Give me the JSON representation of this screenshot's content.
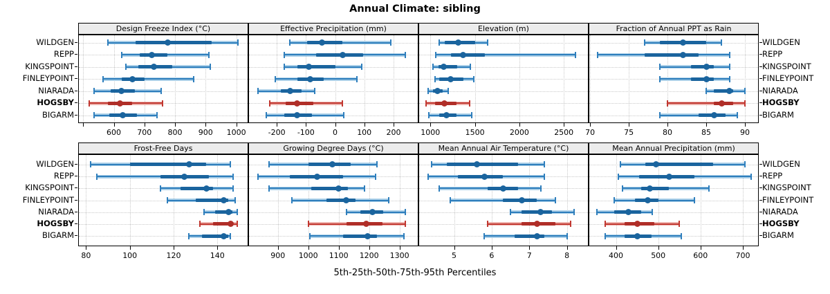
{
  "title": "Annual Climate: sibling",
  "footer": "5th-25th-50th-75th-95th Percentiles",
  "sites": [
    "WILDGEN",
    "REPP",
    "KINGSPOINT",
    "FINLEYPOINT",
    "NIARADA",
    "HOGSBY",
    "BIGARM"
  ],
  "highlight_site": "HOGSBY",
  "colors": {
    "blue_main": "#2e7ebc",
    "blue_dark": "#1a649e",
    "blue_halo": "#aacfe8",
    "red_main": "#c13730",
    "red_dark": "#b02e28",
    "red_halo": "#edb3ad",
    "grid": "#c9c9c9",
    "strip_bg": "#ececec",
    "border": "#000000"
  },
  "chart_data": [
    {
      "type": "dotplot-interval",
      "row": 0,
      "col": 0,
      "title": "Design Freeze Index (°C)",
      "xlim": [
        486,
        1037
      ],
      "tick_values": [
        500,
        600,
        700,
        800,
        900,
        1000
      ],
      "tick_labels": [
        "",
        "600",
        "700",
        "800",
        "900",
        "1000"
      ],
      "percentiles": [
        5,
        25,
        50,
        75,
        95
      ],
      "values": [
        [
          580,
          670,
          775,
          920,
          1005
        ],
        [
          625,
          685,
          725,
          775,
          910
        ],
        [
          640,
          680,
          730,
          790,
          915
        ],
        [
          565,
          625,
          660,
          700,
          860
        ],
        [
          535,
          590,
          625,
          670,
          755
        ],
        [
          520,
          580,
          620,
          660,
          760
        ],
        [
          535,
          585,
          630,
          675,
          740
        ]
      ]
    },
    {
      "type": "dotplot-interval",
      "row": 0,
      "col": 1,
      "title": "Effective Precipitation (mm)",
      "xlim": [
        -295,
        283
      ],
      "tick_values": [
        -200,
        -100,
        0,
        100,
        200
      ],
      "tick_labels": [
        "-200",
        "-100",
        "0",
        "100",
        "200"
      ],
      "percentiles": [
        5,
        25,
        50,
        75,
        95
      ],
      "values": [
        [
          -155,
          -95,
          -45,
          25,
          190
        ],
        [
          -175,
          -65,
          25,
          95,
          240
        ],
        [
          -175,
          -130,
          -90,
          0,
          90
        ],
        [
          -205,
          -130,
          -85,
          -40,
          75
        ],
        [
          -265,
          -185,
          -155,
          -115,
          -70
        ],
        [
          -225,
          -170,
          -130,
          -75,
          25
        ],
        [
          -235,
          -175,
          -130,
          -80,
          30
        ]
      ]
    },
    {
      "type": "dotplot-interval",
      "row": 0,
      "col": 2,
      "title": "Elevation (m)",
      "xlim": [
        873,
        2771
      ],
      "tick_values": [
        1000,
        1500,
        2000,
        2500
      ],
      "tick_labels": [
        "1000",
        "1500",
        "2000",
        "2500"
      ],
      "percentiles": [
        5,
        25,
        50,
        75,
        95
      ],
      "values": [
        [
          1100,
          1160,
          1310,
          1500,
          1640
        ],
        [
          1060,
          1230,
          1370,
          1610,
          2630
        ],
        [
          1030,
          1090,
          1150,
          1300,
          1450
        ],
        [
          1050,
          1100,
          1230,
          1370,
          1490
        ],
        [
          970,
          1030,
          1080,
          1140,
          1200
        ],
        [
          950,
          1050,
          1160,
          1290,
          1440
        ],
        [
          980,
          1100,
          1180,
          1290,
          1460
        ]
      ]
    },
    {
      "type": "dotplot-interval",
      "row": 0,
      "col": 3,
      "title": "Fraction of Annual PPT as Rain",
      "xlim": [
        69.9,
        91.7
      ],
      "tick_values": [
        70,
        75,
        80,
        85,
        90
      ],
      "tick_labels": [
        "70",
        "75",
        "80",
        "85",
        "90"
      ],
      "percentiles": [
        5,
        25,
        50,
        75,
        95
      ],
      "values": [
        [
          77,
          79,
          82,
          85,
          87
        ],
        [
          71,
          77,
          82,
          84,
          88
        ],
        [
          79,
          83,
          85,
          86,
          88
        ],
        [
          79,
          83,
          85,
          86,
          88
        ],
        [
          85,
          86,
          88,
          88.5,
          90
        ],
        [
          80,
          86,
          87,
          88.5,
          90
        ],
        [
          79,
          84,
          86,
          87.5,
          89
        ]
      ]
    },
    {
      "type": "dotplot-interval",
      "row": 1,
      "col": 0,
      "title": "Frost-Free Days",
      "xlim": [
        76.7,
        153.8
      ],
      "tick_values": [
        80,
        100,
        120,
        140
      ],
      "tick_labels": [
        "80",
        "100",
        "120",
        "140"
      ],
      "percentiles": [
        5,
        25,
        50,
        75,
        95
      ],
      "values": [
        [
          82,
          100,
          127,
          135,
          146
        ],
        [
          85,
          114,
          125,
          136,
          147
        ],
        [
          114,
          123,
          135,
          138,
          147
        ],
        [
          117,
          130,
          143,
          145,
          148
        ],
        [
          134,
          139,
          145,
          147,
          149
        ],
        [
          132,
          138,
          146,
          147,
          149
        ],
        [
          127,
          133,
          143,
          145,
          146
        ]
      ]
    },
    {
      "type": "dotplot-interval",
      "row": 1,
      "col": 1,
      "title": "Growing Degree Days (°C)",
      "xlim": [
        805,
        1360
      ],
      "tick_values": [
        900,
        1000,
        1100,
        1200,
        1300
      ],
      "tick_labels": [
        "900",
        "1000",
        "1100",
        "1200",
        "1300"
      ],
      "percentiles": [
        5,
        25,
        50,
        75,
        95
      ],
      "values": [
        [
          870,
          1000,
          1080,
          1140,
          1225
        ],
        [
          835,
          940,
          1030,
          1115,
          1220
        ],
        [
          870,
          1010,
          1100,
          1130,
          1185
        ],
        [
          945,
          1060,
          1125,
          1155,
          1265
        ],
        [
          1125,
          1170,
          1210,
          1245,
          1320
        ],
        [
          1000,
          1125,
          1190,
          1245,
          1320
        ],
        [
          1005,
          1115,
          1195,
          1225,
          1315
        ]
      ]
    },
    {
      "type": "dotplot-interval",
      "row": 1,
      "col": 2,
      "title": "Mean Annual Air Temperature (°C)",
      "xlim": [
        4.07,
        8.56
      ],
      "tick_values": [
        5,
        6,
        7,
        8
      ],
      "tick_labels": [
        "5",
        "6",
        "7",
        "8"
      ],
      "percentiles": [
        5,
        25,
        50,
        75,
        95
      ],
      "values": [
        [
          4.4,
          4.8,
          5.6,
          6.7,
          7.4
        ],
        [
          4.3,
          5.1,
          5.8,
          6.3,
          7.4
        ],
        [
          4.6,
          5.9,
          6.3,
          6.7,
          7.3
        ],
        [
          4.9,
          6.3,
          6.8,
          7.2,
          7.7
        ],
        [
          6.5,
          6.8,
          7.3,
          7.6,
          8.2
        ],
        [
          5.9,
          6.8,
          7.2,
          7.7,
          8.1
        ],
        [
          5.8,
          6.6,
          7.2,
          7.4,
          8.0
        ]
      ]
    },
    {
      "type": "dotplot-interval",
      "row": 1,
      "col": 3,
      "title": "Mean Annual Precipitation (mm)",
      "xlim": [
        337,
        736
      ],
      "tick_values": [
        400,
        500,
        600,
        700
      ],
      "tick_labels": [
        "400",
        "500",
        "600",
        "700"
      ],
      "percentiles": [
        5,
        25,
        50,
        75,
        95
      ],
      "values": [
        [
          410,
          470,
          495,
          630,
          705
        ],
        [
          405,
          455,
          525,
          585,
          720
        ],
        [
          415,
          460,
          480,
          525,
          620
        ],
        [
          395,
          445,
          475,
          500,
          585
        ],
        [
          355,
          395,
          430,
          460,
          485
        ],
        [
          375,
          420,
          450,
          490,
          550
        ],
        [
          375,
          420,
          450,
          485,
          555
        ]
      ]
    }
  ]
}
